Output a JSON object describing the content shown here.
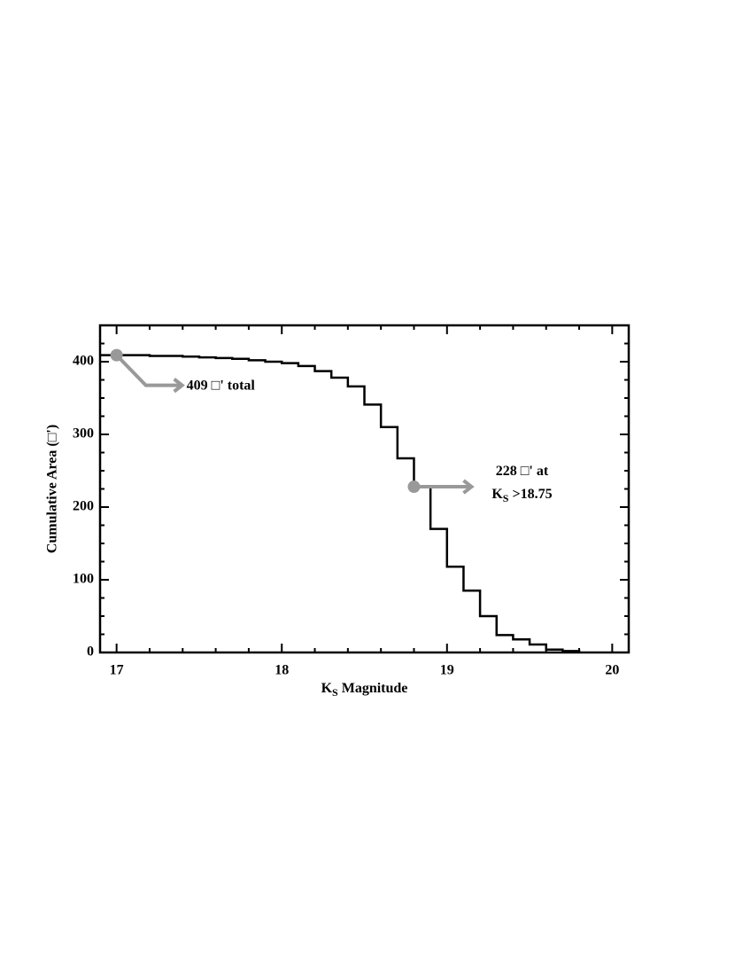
{
  "chart_data": {
    "type": "line",
    "step": "post",
    "xlabel": [
      "K",
      "S",
      " Magnitude"
    ],
    "ylabel": "Cumulative Area (□')",
    "x": [
      16.9,
      17.0,
      17.1,
      17.2,
      17.3,
      17.4,
      17.5,
      17.6,
      17.7,
      17.8,
      17.9,
      18.0,
      18.1,
      18.2,
      18.3,
      18.4,
      18.5,
      18.6,
      18.7,
      18.8,
      18.9,
      19.0,
      19.1,
      19.2,
      19.3,
      19.4,
      19.5,
      19.6,
      19.7,
      19.8
    ],
    "values": [
      409,
      409,
      409,
      408,
      408,
      407,
      406,
      405,
      404,
      402,
      400,
      398,
      394,
      387,
      378,
      366,
      341,
      310,
      267,
      228,
      170,
      118,
      85,
      50,
      24,
      18,
      11,
      4,
      2,
      0
    ],
    "color": "#000000",
    "xlim": [
      16.9,
      20.1
    ],
    "ylim": [
      0,
      450
    ],
    "xticks": [
      17,
      18,
      19,
      20
    ],
    "yticks": [
      0,
      100,
      200,
      300,
      400
    ],
    "minor_xticks": [
      17.2,
      17.4,
      17.6,
      17.8,
      18.2,
      18.4,
      18.6,
      18.8,
      19.2,
      19.4,
      19.6,
      19.8
    ],
    "minor_yticks": [
      25,
      50,
      75,
      125,
      150,
      175,
      225,
      250,
      275,
      325,
      350,
      375,
      425
    ],
    "annotation_color": "#999999",
    "annotations": [
      {
        "x": 17.0,
        "y": 409,
        "lines": [
          [
            "409 □' total"
          ]
        ]
      },
      {
        "x": 18.8,
        "y": 228,
        "lines": [
          [
            "228 □' at"
          ],
          [
            "K",
            "S",
            " >18.75"
          ]
        ]
      }
    ]
  }
}
